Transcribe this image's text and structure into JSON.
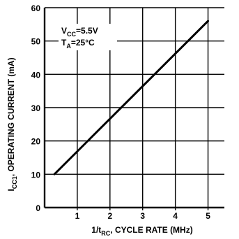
{
  "chart_data": {
    "type": "line",
    "title": "",
    "xlabel": {
      "prefix": "1/t",
      "sub": "RC",
      "suffix": ", CYCLE RATE (MHz)"
    },
    "ylabel": {
      "prefix": "I",
      "sub": "CC1",
      "suffix": ", OPERATING CURRENT (mA)"
    },
    "xlim": [
      0,
      5.5
    ],
    "ylim": [
      0,
      60
    ],
    "xticks": [
      1,
      2,
      3,
      4,
      5
    ],
    "yticks": [
      0,
      10,
      20,
      30,
      40,
      50,
      60
    ],
    "grid": true,
    "series": [
      {
        "x": [
          0.3,
          5.0
        ],
        "y": [
          10,
          56
        ]
      }
    ],
    "annotations": [
      {
        "prefix": "V",
        "sub": "CC",
        "suffix": "=5.5V"
      },
      {
        "prefix": "T",
        "sub": "A",
        "suffix": "=25°C"
      }
    ]
  }
}
